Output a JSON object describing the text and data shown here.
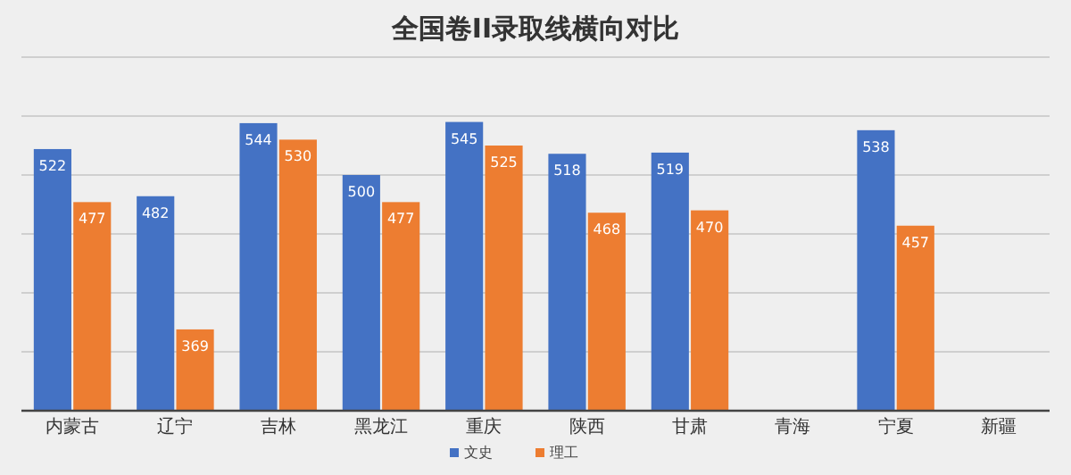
{
  "chart_data": {
    "type": "bar",
    "title": "全国卷II录取线横向对比",
    "categories": [
      "内蒙古",
      "辽宁",
      "吉林",
      "黑龙江",
      "重庆",
      "陕西",
      "甘肃",
      "青海",
      "宁夏",
      "新疆"
    ],
    "series": [
      {
        "name": "文史",
        "color": "#4472c4",
        "values": [
          522,
          482,
          544,
          500,
          545,
          518,
          519,
          null,
          538,
          null
        ]
      },
      {
        "name": "理工",
        "color": "#ed7d31",
        "values": [
          477,
          369,
          530,
          477,
          525,
          468,
          470,
          null,
          457,
          null
        ]
      }
    ],
    "ylim": [
      300,
      600
    ],
    "yticks": [
      {
        "value": 300,
        "label": null
      },
      {
        "value": 350,
        "label": null
      },
      {
        "value": 400,
        "label": null
      },
      {
        "value": 450,
        "label": null
      },
      {
        "value": 500,
        "label": null
      },
      {
        "value": 550,
        "label": null
      },
      {
        "value": 600,
        "label": null
      }
    ],
    "tick_labels": "x",
    "grid": "y",
    "legend": "bottom",
    "data_labels": true
  }
}
